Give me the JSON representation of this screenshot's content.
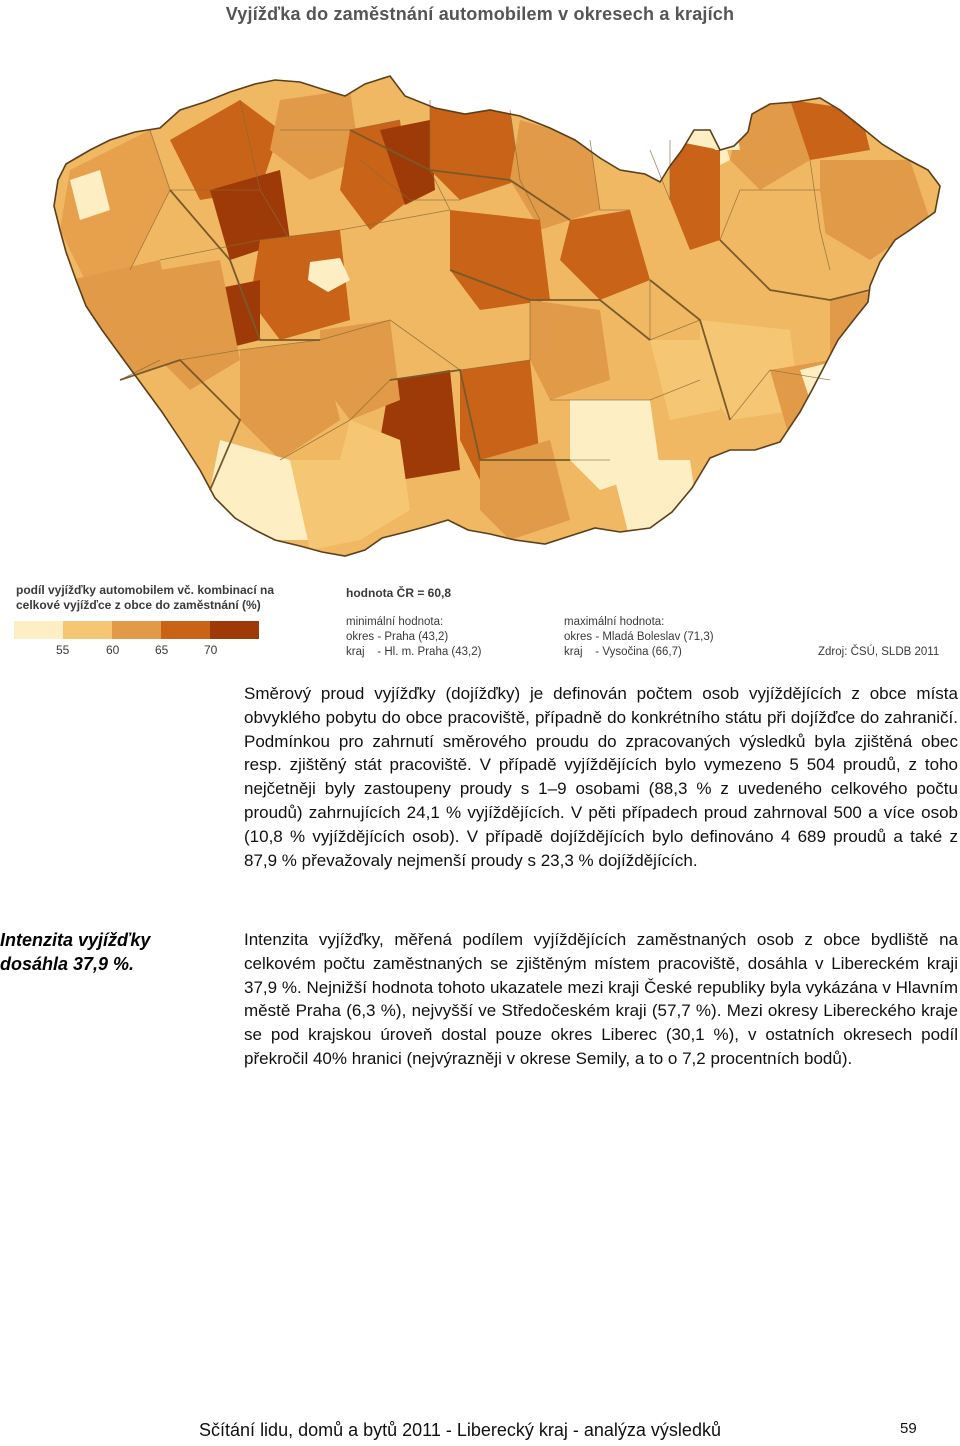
{
  "map": {
    "title": "Vyjížďka do zaměstnání automobilem v okresech a krajích",
    "legend_title": "podíl vyjížďky automobilem vč. kombinací na celkové vyjížďce z obce do zaměstnání (%)",
    "legend_ticks": [
      "55",
      "60",
      "65",
      "70"
    ],
    "legend_colors": [
      "#fdeec4",
      "#f5c673",
      "#e19a48",
      "#c96318",
      "#9d3a08"
    ],
    "region_colors": {
      "lightest": "#fdeec4",
      "light": "#f5c673",
      "medium": "#e19a48",
      "dark": "#c96318",
      "darkest": "#9d3a08",
      "boundary": "#8a6a3a"
    },
    "national_value": "hodnota ČR = 60,8",
    "min_label": "minimální hodnota:",
    "min_okres": "okres - Praha (43,2)",
    "min_kraj": "kraj    - Hl. m. Praha (43,2)",
    "max_label": "maximální hodnota:",
    "max_okres": "okres - Mladá Boleslav (71,3)",
    "max_kraj": "kraj    - Vysočina (66,7)",
    "source": "Zdroj: ČSÚ, SLDB 2011"
  },
  "margin_note": "Intenzita vyjížďky dosáhla 37,9 %.",
  "paragraphs": [
    "Směrový proud vyjížďky (dojížďky) je definován počtem osob vyjíždějících z obce místa obvyklého pobytu do obce pracoviště, případně do konkrétního státu při dojížďce do zahraničí. Podmínkou pro zahrnutí směrového proudu do zpracovaných výsledků byla zjištěná obec resp. zjištěný stát pracoviště. V případě vyjíždějících bylo vymezeno 5 504 proudů, z toho nejčetněji byly zastoupeny proudy s 1–9 osobami (88,3 % z uvedeného celkového počtu proudů) zahrnujících 24,1 % vyjíždějících. V pěti případech proud zahrnoval 500 a více osob (10,8 % vyjíždějících osob). V případě dojíždějících bylo definováno 4 689 proudů a také z 87,9 % převažovaly nejmenší proudy s 23,3 % dojíždějících.",
    "Intenzita vyjížďky, měřená podílem vyjíždějících zaměstnaných osob z obce bydliště na celkovém počtu zaměstnaných se zjištěným místem pracoviště, dosáhla v Libereckém kraji 37,9 %. Nejnižší hodnota tohoto ukazatele mezi kraji České republiky byla vykázána v Hlavním městě Praha (6,3 %), nejvyšší ve Středočeském kraji (57,7 %). Mezi okresy Libereckého kraje se pod krajskou úroveň dostal pouze okres Liberec (30,1 %), v ostatních okresech podíl překročil 40% hranici (nejvýrazněji v okrese Semily, a to o 7,2 procentních bodů)."
  ],
  "footer": "Sčítání lidu, domů a bytů 2011 - Liberecký kraj - analýza výsledků",
  "page_number": "59"
}
